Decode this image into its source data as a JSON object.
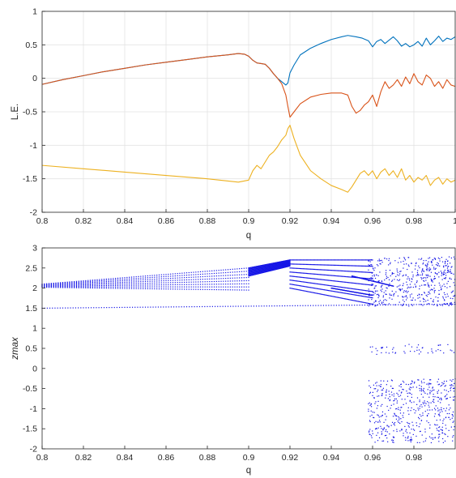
{
  "chart_data": [
    {
      "type": "line",
      "xlabel": "q",
      "ylabel": "L.E.",
      "xlim": [
        0.8,
        1.0
      ],
      "ylim": [
        -2,
        1
      ],
      "grid": true,
      "xticks": [
        "0.8",
        "0.82",
        "0.84",
        "0.86",
        "0.88",
        "0.9",
        "0.92",
        "0.94",
        "0.96",
        "0.98",
        "1"
      ],
      "yticks": [
        "-2",
        "-1.5",
        "-1",
        "-0.5",
        "0",
        "0.5",
        "1"
      ],
      "colors": [
        "#0072BD",
        "#D95319",
        "#EDB120"
      ],
      "series": [
        {
          "color": "#0072BD",
          "x": [
            0.8,
            0.81,
            0.82,
            0.83,
            0.84,
            0.85,
            0.86,
            0.87,
            0.88,
            0.89,
            0.895,
            0.898,
            0.9,
            0.902,
            0.904,
            0.906,
            0.908,
            0.91,
            0.912,
            0.914,
            0.916,
            0.918,
            0.919,
            0.92,
            0.922,
            0.925,
            0.93,
            0.935,
            0.94,
            0.945,
            0.948,
            0.952,
            0.955,
            0.958,
            0.96,
            0.962,
            0.964,
            0.966,
            0.968,
            0.97,
            0.972,
            0.974,
            0.976,
            0.978,
            0.98,
            0.982,
            0.984,
            0.986,
            0.988,
            0.99,
            0.992,
            0.994,
            0.996,
            0.998,
            1.0
          ],
          "y": [
            -0.09,
            -0.02,
            0.04,
            0.1,
            0.15,
            0.2,
            0.24,
            0.28,
            0.32,
            0.35,
            0.37,
            0.36,
            0.33,
            0.27,
            0.23,
            0.22,
            0.21,
            0.15,
            0.07,
            0.0,
            -0.05,
            -0.1,
            -0.07,
            0.08,
            0.2,
            0.35,
            0.45,
            0.52,
            0.58,
            0.62,
            0.64,
            0.62,
            0.6,
            0.56,
            0.47,
            0.55,
            0.58,
            0.52,
            0.57,
            0.62,
            0.56,
            0.48,
            0.52,
            0.47,
            0.5,
            0.55,
            0.48,
            0.6,
            0.5,
            0.56,
            0.63,
            0.55,
            0.6,
            0.58,
            0.62
          ]
        },
        {
          "color": "#D95319",
          "x": [
            0.8,
            0.81,
            0.82,
            0.83,
            0.84,
            0.85,
            0.86,
            0.87,
            0.88,
            0.89,
            0.895,
            0.898,
            0.9,
            0.902,
            0.904,
            0.906,
            0.908,
            0.91,
            0.912,
            0.914,
            0.916,
            0.918,
            0.919,
            0.92,
            0.922,
            0.925,
            0.93,
            0.935,
            0.94,
            0.945,
            0.948,
            0.95,
            0.952,
            0.954,
            0.956,
            0.958,
            0.96,
            0.962,
            0.964,
            0.966,
            0.968,
            0.97,
            0.972,
            0.974,
            0.976,
            0.978,
            0.98,
            0.982,
            0.984,
            0.986,
            0.988,
            0.99,
            0.992,
            0.994,
            0.996,
            0.998,
            1.0
          ],
          "y": [
            -0.09,
            -0.02,
            0.04,
            0.1,
            0.15,
            0.2,
            0.24,
            0.28,
            0.32,
            0.35,
            0.37,
            0.36,
            0.33,
            0.27,
            0.23,
            0.22,
            0.21,
            0.15,
            0.07,
            0.0,
            -0.08,
            -0.25,
            -0.42,
            -0.58,
            -0.5,
            -0.38,
            -0.28,
            -0.24,
            -0.22,
            -0.22,
            -0.25,
            -0.42,
            -0.52,
            -0.48,
            -0.4,
            -0.35,
            -0.25,
            -0.42,
            -0.2,
            -0.05,
            -0.15,
            -0.1,
            -0.02,
            -0.12,
            0.02,
            -0.08,
            0.07,
            -0.05,
            -0.1,
            0.05,
            0.0,
            -0.12,
            -0.05,
            -0.15,
            -0.02,
            -0.1,
            -0.12
          ]
        },
        {
          "color": "#EDB120",
          "x": [
            0.8,
            0.82,
            0.84,
            0.86,
            0.88,
            0.895,
            0.9,
            0.902,
            0.904,
            0.906,
            0.908,
            0.91,
            0.912,
            0.914,
            0.916,
            0.918,
            0.919,
            0.92,
            0.922,
            0.925,
            0.93,
            0.935,
            0.94,
            0.945,
            0.948,
            0.95,
            0.952,
            0.954,
            0.956,
            0.958,
            0.96,
            0.962,
            0.964,
            0.966,
            0.968,
            0.97,
            0.972,
            0.974,
            0.976,
            0.978,
            0.98,
            0.982,
            0.984,
            0.986,
            0.988,
            0.99,
            0.992,
            0.994,
            0.996,
            0.998,
            1.0
          ],
          "y": [
            -1.3,
            -1.35,
            -1.4,
            -1.45,
            -1.5,
            -1.55,
            -1.52,
            -1.38,
            -1.3,
            -1.35,
            -1.25,
            -1.15,
            -1.1,
            -1.02,
            -0.92,
            -0.85,
            -0.75,
            -0.7,
            -0.9,
            -1.15,
            -1.38,
            -1.5,
            -1.6,
            -1.66,
            -1.7,
            -1.62,
            -1.52,
            -1.42,
            -1.38,
            -1.45,
            -1.38,
            -1.5,
            -1.4,
            -1.35,
            -1.45,
            -1.38,
            -1.48,
            -1.35,
            -1.52,
            -1.45,
            -1.55,
            -1.48,
            -1.52,
            -1.45,
            -1.6,
            -1.52,
            -1.48,
            -1.58,
            -1.5,
            -1.55,
            -1.52
          ]
        }
      ]
    },
    {
      "type": "scatter",
      "xlabel": "q",
      "ylabel": "zmax",
      "xlim": [
        0.8,
        1.0
      ],
      "ylim": [
        -2,
        3
      ],
      "grid": false,
      "xticks": [
        "0.8",
        "0.82",
        "0.84",
        "0.86",
        "0.88",
        "0.9",
        "0.92",
        "0.94",
        "0.96",
        "0.98"
      ],
      "yticks": [
        "-2",
        "-1.5",
        "-1",
        "-0.5",
        "0",
        "0.5",
        "1",
        "1.5",
        "2",
        "2.5",
        "3"
      ],
      "marker_color": "#1414E6",
      "bands": [
        {
          "x0": 0.8,
          "x1": 0.9,
          "lo0": 2.02,
          "lo1": 1.95,
          "hi0": 2.1,
          "hi1": 2.5
        },
        {
          "x0": 0.9,
          "x1": 0.92,
          "lo0": 2.3,
          "lo1": 2.55,
          "hi0": 2.5,
          "hi1": 2.7
        },
        {
          "x0": 0.92,
          "x1": 0.96,
          "lo0": 2.0,
          "lo1": 1.6,
          "hi0": 2.7,
          "hi1": 2.7
        }
      ],
      "lines": [
        {
          "x0": 0.8,
          "y0": 1.5,
          "x1": 1.0,
          "y1": 1.6
        },
        {
          "x0": 0.94,
          "y0": 2.0,
          "x1": 0.96,
          "y1": 1.82
        },
        {
          "x0": 0.95,
          "y0": 2.3,
          "x1": 0.97,
          "y1": 2.05
        }
      ],
      "chaos": {
        "x0": 0.958,
        "x1": 1.0,
        "ranges": [
          [
            1.55,
            2.78
          ],
          [
            -1.85,
            -0.25
          ],
          [
            0.35,
            0.6
          ]
        ]
      }
    }
  ]
}
